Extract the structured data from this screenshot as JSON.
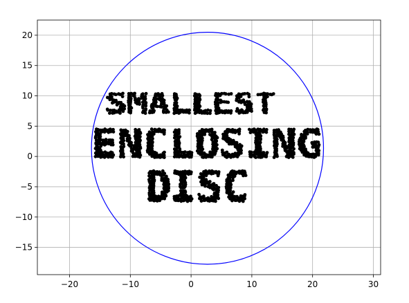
{
  "chart_data": {
    "type": "scatter",
    "title": "",
    "xlabel": "",
    "ylabel": "",
    "xlim": [
      -25.3,
      31.2
    ],
    "ylim": [
      -19.5,
      22.5
    ],
    "grid": true,
    "xticks": [
      -20,
      -10,
      0,
      10,
      20,
      30
    ],
    "yticks": [
      -15,
      -10,
      -5,
      0,
      5,
      10,
      15,
      20
    ],
    "xtick_labels": [
      "−20",
      "−10",
      "0",
      "10",
      "20",
      "30"
    ],
    "ytick_labels": [
      "−15",
      "−10",
      "−5",
      "0",
      "5",
      "10",
      "15",
      "20"
    ],
    "point_color": "#000000",
    "circle": {
      "center": [
        2.7,
        1.35
      ],
      "radius": 19.1,
      "color": "#0000ff"
    },
    "text_points": {
      "lines": [
        {
          "text": "SMALLEST",
          "x_start": -14.0,
          "x_end": 14.0,
          "y_bottom": 6.2,
          "y_top": 10.3
        },
        {
          "text": "ENCLOSING",
          "x_start": -16.3,
          "x_end": 21.6,
          "y_bottom": -1.4,
          "y_top": 4.4
        },
        {
          "text": "DISC",
          "x_start": -7.5,
          "x_end": 9.5,
          "y_bottom": -8.9,
          "y_top": -2.5
        }
      ]
    }
  }
}
